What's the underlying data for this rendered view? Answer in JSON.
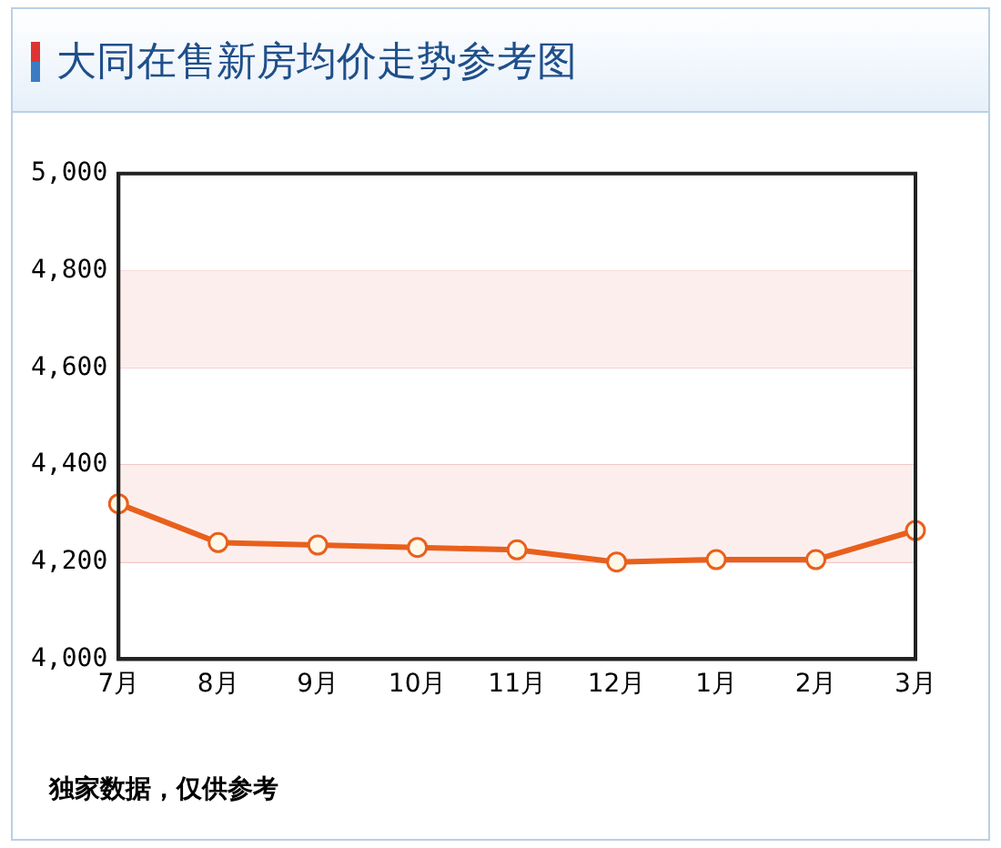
{
  "chart_data": {
    "type": "line",
    "title": "大同在售新房均价走势参考图",
    "categories": [
      "7月",
      "8月",
      "9月",
      "10月",
      "11月",
      "12月",
      "1月",
      "2月",
      "3月"
    ],
    "series": [
      {
        "color": "#e8601c",
        "values": [
          4320,
          4240,
          4235,
          4230,
          4225,
          4200,
          4205,
          4205,
          4265
        ]
      }
    ],
    "ylim": [
      4000,
      5000
    ],
    "yticks": [
      {
        "value": 4000,
        "label": "4,000"
      },
      {
        "value": 4200,
        "label": "4,200"
      },
      {
        "value": 4400,
        "label": "4,400"
      },
      {
        "value": 4600,
        "label": "4,600"
      },
      {
        "value": 4800,
        "label": "4,800"
      },
      {
        "value": 5000,
        "label": "5,000"
      }
    ],
    "grid": "y",
    "marker": "circle",
    "legend": false,
    "bands": [
      {
        "axis": "y",
        "from": 4200,
        "to": 4400,
        "color": "#fdeeee"
      },
      {
        "axis": "y",
        "from": 4600,
        "to": 4800,
        "color": "#fdeeee"
      }
    ],
    "annotations": [
      "独家数据，仅供参考"
    ]
  }
}
